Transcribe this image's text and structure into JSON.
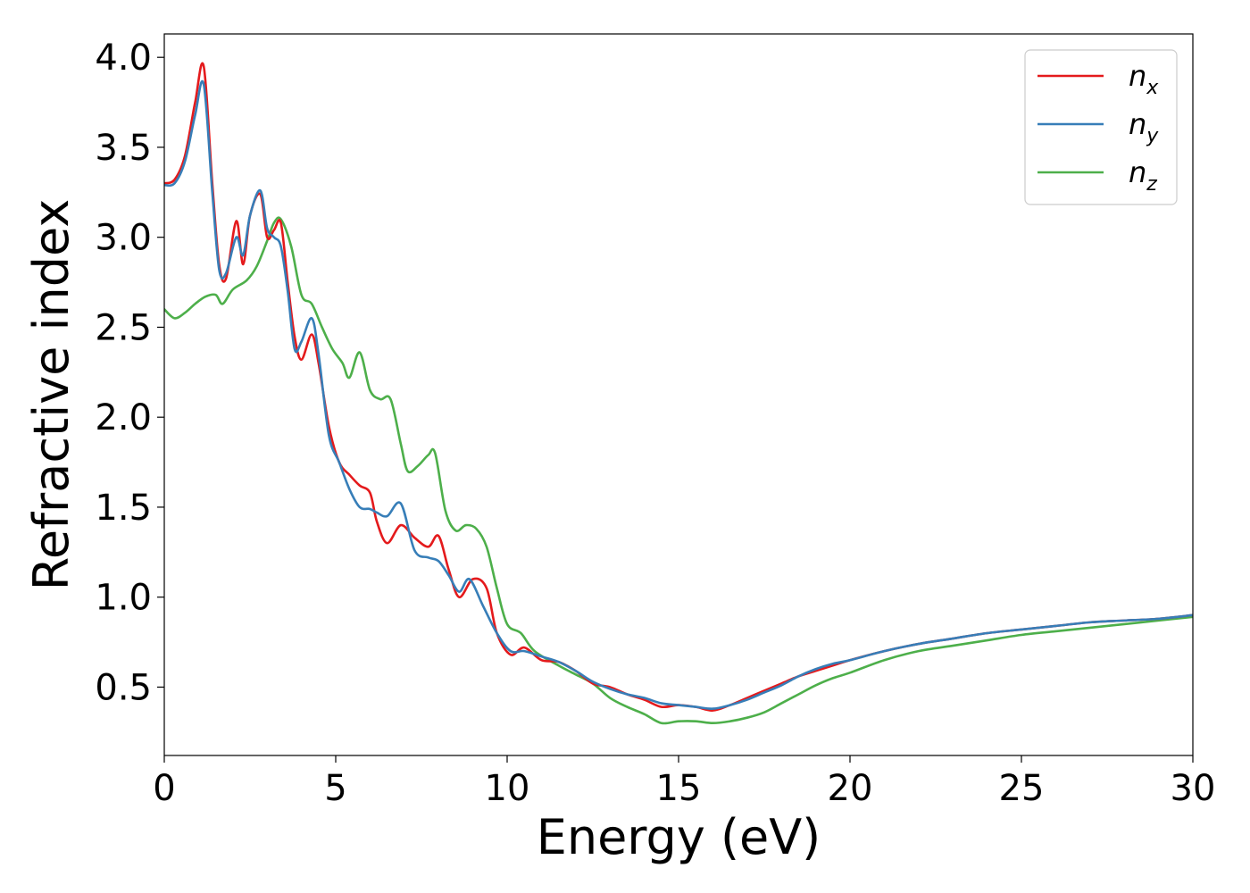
{
  "chart_data": {
    "type": "line",
    "title": "",
    "xlabel": "Energy (eV)",
    "ylabel": "Refractive index",
    "xlim": [
      0,
      30
    ],
    "ylim": [
      0.12,
      4.13
    ],
    "xticks": [
      0,
      5,
      10,
      15,
      20,
      25,
      30
    ],
    "yticks": [
      0.5,
      1.0,
      1.5,
      2.0,
      2.5,
      3.0,
      3.5,
      4.0
    ],
    "xtick_labels": [
      "0",
      "5",
      "10",
      "15",
      "20",
      "25",
      "30"
    ],
    "ytick_labels": [
      "0.5",
      "1.0",
      "1.5",
      "2.0",
      "2.5",
      "3.0",
      "3.5",
      "4.0"
    ],
    "grid": false,
    "legend_position": "top-right",
    "series": [
      {
        "name": "n_x",
        "label_base": "n",
        "label_sub": "x",
        "color": "#e41a1c",
        "x": [
          0,
          0.3,
          0.6,
          0.9,
          1.15,
          1.4,
          1.6,
          1.8,
          2.1,
          2.3,
          2.5,
          2.8,
          3.0,
          3.2,
          3.4,
          3.6,
          3.8,
          4.0,
          4.3,
          4.5,
          4.8,
          5.1,
          5.4,
          5.7,
          6.0,
          6.2,
          6.5,
          6.9,
          7.3,
          7.7,
          8.0,
          8.3,
          8.6,
          9.0,
          9.4,
          9.7,
          10.1,
          10.5,
          11.0,
          11.5,
          12.0,
          12.5,
          13.0,
          13.5,
          14.0,
          14.5,
          15.0,
          15.5,
          16.0,
          16.5,
          17.0,
          17.5,
          18.0,
          18.5,
          19.0,
          19.5,
          20.0,
          21.0,
          22.0,
          23.0,
          24.0,
          25.0,
          26.0,
          27.0,
          28.0,
          29.0,
          30.0
        ],
        "y": [
          3.3,
          3.32,
          3.45,
          3.75,
          3.95,
          3.3,
          2.85,
          2.77,
          3.09,
          2.85,
          3.12,
          3.24,
          3.0,
          3.04,
          3.08,
          2.75,
          2.45,
          2.32,
          2.46,
          2.3,
          1.95,
          1.75,
          1.68,
          1.62,
          1.58,
          1.42,
          1.3,
          1.4,
          1.33,
          1.28,
          1.34,
          1.15,
          1.0,
          1.1,
          1.05,
          0.8,
          0.68,
          0.72,
          0.65,
          0.64,
          0.59,
          0.52,
          0.5,
          0.46,
          0.43,
          0.39,
          0.4,
          0.39,
          0.37,
          0.4,
          0.44,
          0.48,
          0.52,
          0.56,
          0.59,
          0.62,
          0.65,
          0.7,
          0.74,
          0.77,
          0.8,
          0.82,
          0.84,
          0.86,
          0.87,
          0.88,
          0.9
        ]
      },
      {
        "name": "n_y",
        "label_base": "n",
        "label_sub": "y",
        "color": "#377eb8",
        "x": [
          0,
          0.3,
          0.6,
          0.9,
          1.15,
          1.4,
          1.6,
          1.8,
          2.1,
          2.3,
          2.5,
          2.8,
          3.0,
          3.2,
          3.4,
          3.6,
          3.8,
          4.0,
          4.3,
          4.5,
          4.8,
          5.1,
          5.4,
          5.7,
          6.0,
          6.2,
          6.5,
          6.9,
          7.3,
          7.7,
          8.0,
          8.3,
          8.6,
          8.9,
          9.3,
          9.7,
          10.1,
          10.5,
          11.0,
          11.5,
          12.0,
          12.5,
          13.0,
          13.5,
          14.0,
          14.5,
          15.0,
          15.5,
          16.0,
          16.5,
          17.0,
          17.5,
          18.0,
          18.5,
          19.0,
          19.5,
          20.0,
          21.0,
          22.0,
          23.0,
          24.0,
          25.0,
          26.0,
          27.0,
          28.0,
          29.0,
          30.0
        ],
        "y": [
          3.29,
          3.3,
          3.42,
          3.68,
          3.85,
          3.25,
          2.82,
          2.8,
          3.0,
          2.9,
          3.12,
          3.26,
          3.05,
          3.0,
          2.95,
          2.7,
          2.38,
          2.42,
          2.55,
          2.35,
          1.9,
          1.75,
          1.6,
          1.5,
          1.49,
          1.47,
          1.45,
          1.52,
          1.26,
          1.22,
          1.2,
          1.12,
          1.03,
          1.1,
          0.95,
          0.8,
          0.7,
          0.7,
          0.67,
          0.64,
          0.59,
          0.53,
          0.49,
          0.46,
          0.44,
          0.41,
          0.4,
          0.39,
          0.38,
          0.4,
          0.43,
          0.47,
          0.51,
          0.56,
          0.6,
          0.63,
          0.65,
          0.7,
          0.74,
          0.77,
          0.8,
          0.82,
          0.84,
          0.86,
          0.87,
          0.88,
          0.9
        ]
      },
      {
        "name": "n_z",
        "label_base": "n",
        "label_sub": "z",
        "color": "#4daf4a",
        "x": [
          0,
          0.3,
          0.6,
          0.9,
          1.2,
          1.5,
          1.7,
          2.0,
          2.4,
          2.7,
          3.0,
          3.2,
          3.4,
          3.7,
          4.0,
          4.3,
          4.6,
          4.9,
          5.2,
          5.4,
          5.7,
          6.0,
          6.3,
          6.6,
          6.9,
          7.1,
          7.4,
          7.7,
          7.9,
          8.2,
          8.5,
          8.8,
          9.1,
          9.4,
          9.7,
          10.0,
          10.4,
          10.8,
          11.5,
          12.0,
          12.5,
          13.0,
          13.5,
          14.0,
          14.5,
          15.0,
          15.5,
          16.0,
          16.5,
          17.0,
          17.5,
          18.0,
          18.5,
          19.0,
          19.5,
          20.0,
          21.0,
          22.0,
          23.0,
          24.0,
          25.0,
          26.0,
          27.0,
          28.0,
          29.0,
          30.0
        ],
        "y": [
          2.6,
          2.55,
          2.58,
          2.63,
          2.67,
          2.68,
          2.63,
          2.71,
          2.76,
          2.84,
          2.98,
          3.08,
          3.1,
          2.95,
          2.68,
          2.63,
          2.5,
          2.38,
          2.3,
          2.22,
          2.36,
          2.15,
          2.1,
          2.1,
          1.85,
          1.7,
          1.73,
          1.79,
          1.8,
          1.48,
          1.37,
          1.4,
          1.38,
          1.28,
          1.05,
          0.85,
          0.8,
          0.7,
          0.62,
          0.57,
          0.52,
          0.44,
          0.39,
          0.35,
          0.3,
          0.31,
          0.31,
          0.3,
          0.31,
          0.33,
          0.36,
          0.41,
          0.46,
          0.51,
          0.55,
          0.58,
          0.65,
          0.7,
          0.73,
          0.76,
          0.79,
          0.81,
          0.83,
          0.85,
          0.87,
          0.89
        ]
      }
    ]
  }
}
